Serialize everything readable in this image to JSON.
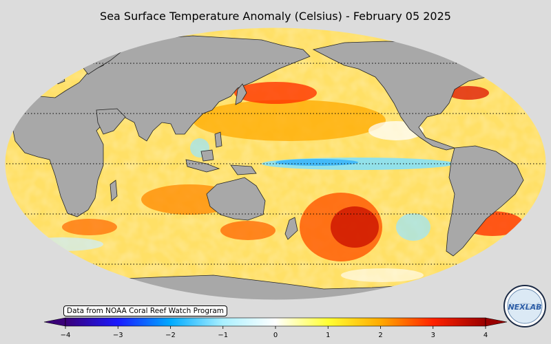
{
  "title": "Sea Surface Temperature Anomaly (Celsius) - February 05 2025",
  "credit": "Data from NOAA Coral Reef Watch Program",
  "colorbar": {
    "min": -4,
    "max": 4,
    "ticks": [
      "−4",
      "−3",
      "−2",
      "−1",
      "0",
      "1",
      "2",
      "3",
      "4"
    ],
    "colors": [
      "#3a0078",
      "#1a1aff",
      "#00aaff",
      "#aaf0ff",
      "#ffffff",
      "#ffff33",
      "#ffaa00",
      "#ff2200",
      "#990000"
    ]
  },
  "logo": {
    "text": "NEXLAB",
    "icon": "nexlab-globe-logo"
  },
  "map": {
    "projection": "robinson",
    "ocean_base_color": "#ffe066",
    "land_color": "#a8a8a8",
    "background_color": "#dcdcdc"
  }
}
